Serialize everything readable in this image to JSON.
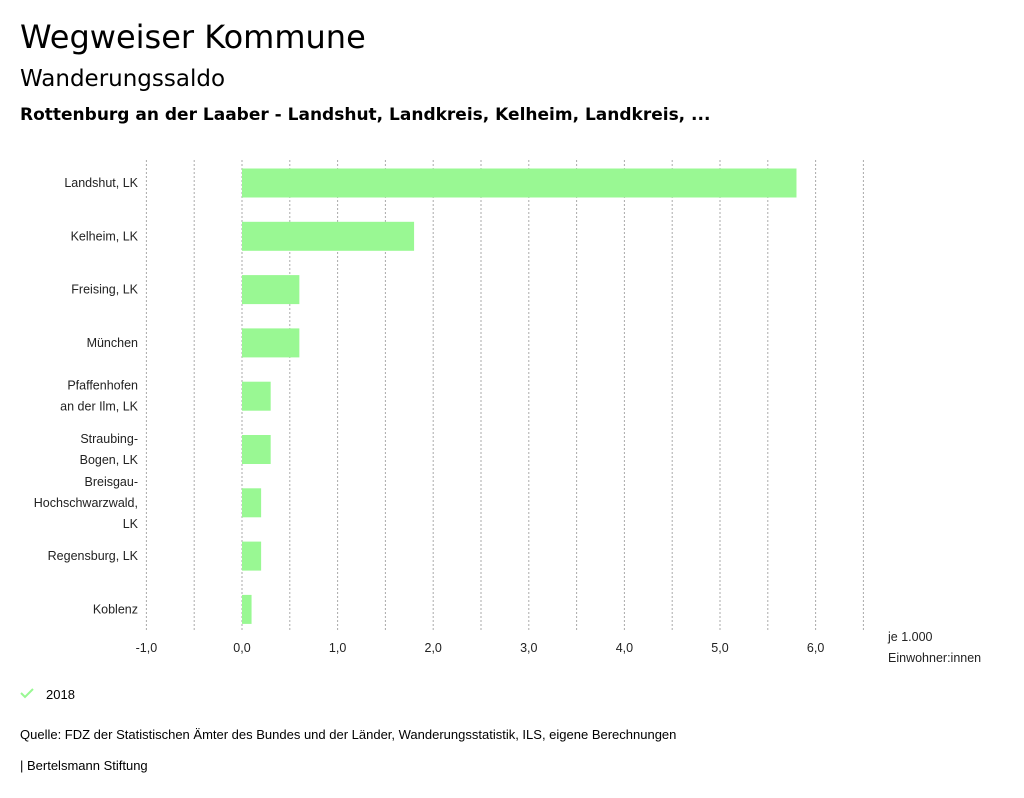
{
  "header": {
    "title": "Wegweiser Kommune",
    "subtitle": "Wanderungssaldo",
    "selection": "Rottenburg an der Laaber - Landshut, Landkreis, Kelheim, Landkreis, ..."
  },
  "chart_data": {
    "type": "bar",
    "orientation": "horizontal",
    "categories": [
      [
        "Landshut, LK"
      ],
      [
        "Kelheim, LK"
      ],
      [
        "Freising, LK"
      ],
      [
        "München"
      ],
      [
        "Pfaffenhofen",
        "an der Ilm, LK"
      ],
      [
        "Straubing-",
        "Bogen, LK"
      ],
      [
        "Breisgau-",
        "Hochschwarzwald,",
        "LK"
      ],
      [
        "Regensburg, LK"
      ],
      [
        "Koblenz"
      ]
    ],
    "series": [
      {
        "name": "2018",
        "color": "#99f893",
        "values": [
          5.8,
          1.8,
          0.6,
          0.6,
          0.3,
          0.3,
          0.2,
          0.2,
          0.1
        ]
      }
    ],
    "xlim": [
      -1.0,
      6.5
    ],
    "xticks": [
      -1,
      0,
      1,
      2,
      3,
      4,
      5,
      6
    ],
    "xtick_labels": [
      "-1,0",
      "0,0",
      "1,0",
      "2,0",
      "3,0",
      "4,0",
      "5,0",
      "6,0"
    ],
    "xlabel": [
      "je 1.000",
      "Einwohner:innen"
    ],
    "grid": "vertical dotted",
    "legend_placement": "bottom-left"
  },
  "legend": {
    "label": "2018"
  },
  "footer": {
    "source": "Quelle: FDZ der Statistischen Ämter des Bundes und der Länder, Wanderungsstatistik, ILS, eigene Berechnungen",
    "brand": "| Bertelsmann Stiftung"
  }
}
